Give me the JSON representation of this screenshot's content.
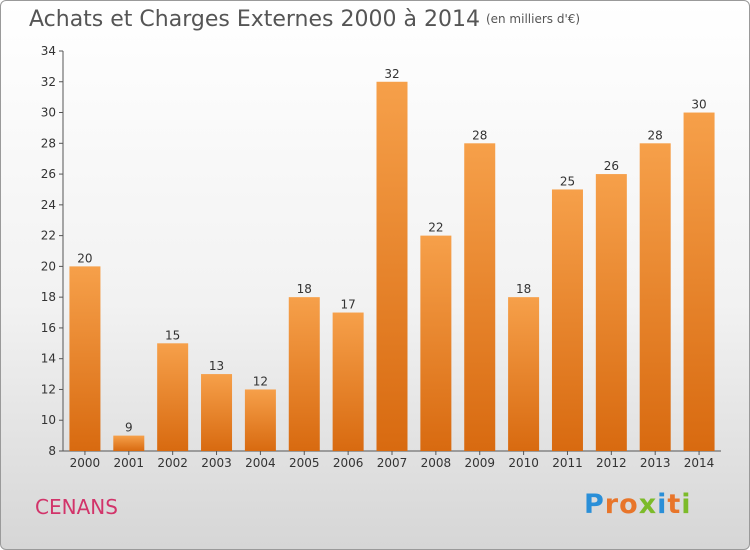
{
  "chart_data": {
    "type": "bar",
    "title": "Achats et Charges Externes 2000 à 2014",
    "subtitle": "(en milliers d'€)",
    "xlabel": "",
    "ylabel": "",
    "categories": [
      "2000",
      "2001",
      "2002",
      "2003",
      "2004",
      "2005",
      "2006",
      "2007",
      "2008",
      "2009",
      "2010",
      "2011",
      "2012",
      "2013",
      "2014"
    ],
    "values": [
      20,
      9,
      15,
      13,
      12,
      18,
      17,
      32,
      22,
      28,
      18,
      25,
      26,
      28,
      30
    ],
    "ylim": [
      8,
      34
    ],
    "yticks": [
      8,
      10,
      12,
      14,
      16,
      18,
      20,
      22,
      24,
      26,
      28,
      30,
      32,
      34
    ],
    "grid": false,
    "bar_color": "#f08a28"
  },
  "commune": "CENANS",
  "logo": {
    "letters": [
      "P",
      "r",
      "o",
      "x",
      "i",
      "t",
      "i"
    ],
    "colors": [
      "#2a8fd8",
      "#e8752a",
      "#e8752a",
      "#7cbb2a",
      "#2a8fd8",
      "#e8752a",
      "#7cbb2a"
    ]
  }
}
